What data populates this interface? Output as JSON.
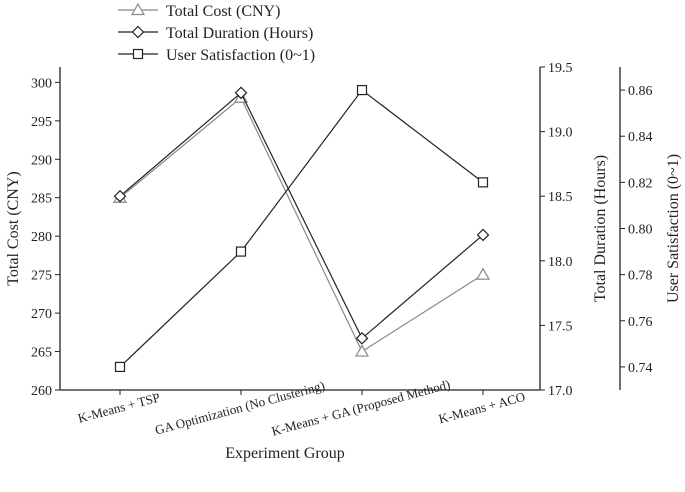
{
  "chart_data": {
    "type": "line",
    "categories": [
      "K-Means + TSP",
      "GA Optimization (No Clustering)",
      "K-Means + GA (Proposed Method)",
      "K-Means + ACO"
    ],
    "xlabel": "Experiment Group",
    "series": [
      {
        "name": "Total Cost (CNY)",
        "marker": "triangle",
        "axis": "cost",
        "color": "#888888",
        "values": [
          285,
          298,
          265,
          275
        ]
      },
      {
        "name": "Total Duration (Hours)",
        "marker": "diamond",
        "axis": "duration",
        "color": "#222222",
        "values": [
          18.5,
          19.3,
          17.4,
          18.2
        ]
      },
      {
        "name": "User Satisfaction (0~1)",
        "marker": "square",
        "axis": "satisfaction",
        "color": "#222222",
        "values": [
          0.74,
          0.79,
          0.86,
          0.82
        ]
      }
    ],
    "axes": {
      "cost": {
        "label": "Total Cost (CNY)",
        "ylim": [
          260,
          302
        ],
        "ticks": [
          "260",
          "265",
          "270",
          "275",
          "280",
          "285",
          "290",
          "295",
          "300"
        ]
      },
      "duration": {
        "label": "Total Duration (Hours)",
        "ylim": [
          17.0,
          19.5
        ],
        "ticks": [
          "17.0",
          "17.5",
          "18.0",
          "18.5",
          "19.0",
          "19.5"
        ]
      },
      "satisfaction": {
        "label": "User Satisfaction (0~1)",
        "ylim": [
          0.73,
          0.87
        ],
        "ticks": [
          "0.74",
          "0.76",
          "0.78",
          "0.80",
          "0.82",
          "0.84",
          "0.86"
        ]
      }
    },
    "legend_position": "top-center",
    "grid": false
  }
}
